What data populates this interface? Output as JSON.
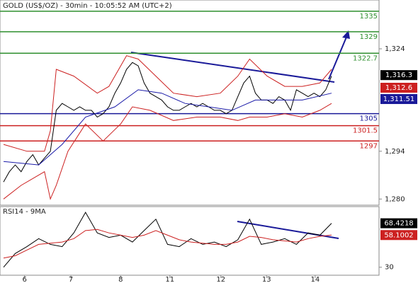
{
  "chart_data": [
    {
      "type": "line",
      "title": "GOLD (US$/OZ) - 30min - 10:05:52 AM (UTC+2)",
      "xlim": [
        -0.6,
        64.1
      ],
      "ylim": [
        1278.2,
        1338.3
      ],
      "yticks": [
        {
          "value": 1324,
          "label": "1,324"
        },
        {
          "value": 1294,
          "label": "1,294"
        },
        {
          "value": 1280,
          "label": "1,280"
        }
      ],
      "levels": [
        {
          "value": 1335,
          "color": "#2f8f2f"
        },
        {
          "value": 1329,
          "color": "#2f8f2f"
        },
        {
          "value": 1322.7,
          "color": "#2f8f2f"
        },
        {
          "value": 1305,
          "color": "#1a1a99"
        },
        {
          "value": 1301.5,
          "color": "#cc2020"
        },
        {
          "value": 1297,
          "color": "#cc2020"
        }
      ],
      "price_labels": [
        {
          "value": 1316.3,
          "label": "1,316.3",
          "color": "#000000"
        },
        {
          "value": 1312.6,
          "label": "1,312.6",
          "color": "#cc2020"
        },
        {
          "value": 1311.51,
          "label": "1,311.51",
          "color": "#1a1a99"
        }
      ],
      "series": [
        {
          "color": "#000000",
          "x": [
            0,
            1,
            2,
            3,
            4,
            5,
            6,
            7,
            8,
            9,
            10,
            11,
            12,
            13,
            14,
            15,
            16,
            17,
            18,
            19,
            20,
            21,
            22,
            23,
            24,
            25,
            26,
            27,
            28,
            29,
            30,
            31,
            32,
            33,
            34,
            35,
            36,
            37,
            38,
            39,
            40,
            41,
            42,
            43,
            44,
            45,
            46,
            47,
            48,
            49,
            50,
            51,
            52,
            53,
            54,
            55,
            56
          ],
          "values": [
            1285,
            1288,
            1290,
            1288,
            1291,
            1293,
            1290,
            1292,
            1294,
            1306,
            1308,
            1307,
            1306,
            1307,
            1306,
            1306,
            1304,
            1305,
            1307,
            1311,
            1314,
            1318,
            1320,
            1319,
            1314,
            1311,
            1310,
            1309,
            1307,
            1306,
            1306,
            1307,
            1308,
            1307,
            1308,
            1307,
            1306,
            1306,
            1305,
            1306,
            1310,
            1314,
            1316,
            1311,
            1309,
            1309,
            1308,
            1310,
            1309,
            1306,
            1312,
            1311,
            1310,
            1311,
            1310,
            1312,
            1316
          ]
        },
        {
          "color": "#cc2020",
          "x": [
            0,
            4,
            7,
            8,
            9,
            12,
            16,
            18,
            21,
            23,
            26,
            29,
            33,
            37,
            40,
            42,
            45,
            48,
            51,
            54,
            56
          ],
          "values": [
            1296,
            1294,
            1294,
            1300,
            1318,
            1316,
            1311,
            1313,
            1322,
            1321,
            1316,
            1311,
            1310,
            1311,
            1316,
            1321,
            1316,
            1313,
            1313,
            1314,
            1318
          ]
        },
        {
          "color": "#cc2020",
          "x": [
            0,
            3,
            7,
            8,
            9,
            11,
            14,
            17,
            20,
            22,
            25,
            29,
            33,
            37,
            40,
            42,
            45,
            48,
            51,
            54,
            56
          ],
          "values": [
            1280,
            1284,
            1288,
            1280,
            1284,
            1294,
            1302,
            1297,
            1302,
            1307,
            1306,
            1303,
            1304,
            1304,
            1303,
            1304,
            1304,
            1305,
            1304,
            1306,
            1308
          ]
        },
        {
          "color": "#1a1aa8",
          "x": [
            0,
            6,
            10,
            14,
            19,
            23,
            27,
            31,
            35,
            39,
            43,
            47,
            51,
            56
          ],
          "values": [
            1291,
            1290,
            1296,
            1304,
            1307,
            1312,
            1311,
            1308,
            1307,
            1306,
            1309,
            1309,
            1309,
            1311
          ]
        }
      ]
    },
    {
      "type": "line",
      "title": "RSI14 - 9MA",
      "xlim": [
        -0.6,
        64.1
      ],
      "ylim": [
        23,
        83
      ],
      "yticks": [
        30
      ],
      "xticks": [
        {
          "value": 3.6,
          "label": "6"
        },
        {
          "value": 11.5,
          "label": "7"
        },
        {
          "value": 20,
          "label": "8"
        },
        {
          "value": 28.4,
          "label": "11"
        },
        {
          "value": 37.1,
          "label": "12"
        },
        {
          "value": 44.9,
          "label": "13"
        },
        {
          "value": 53.2,
          "label": "14"
        }
      ],
      "price_labels": [
        {
          "value": 68.4218,
          "color": "#000000"
        },
        {
          "value": 58.1002,
          "color": "#cc2020"
        }
      ],
      "series": [
        {
          "color": "#000000",
          "x": [
            0,
            2,
            4,
            6,
            8,
            10,
            12,
            14,
            16,
            18,
            20,
            22,
            24,
            26,
            28,
            30,
            32,
            34,
            36,
            38,
            40,
            42,
            44,
            46,
            48,
            50,
            52,
            54,
            56
          ],
          "values": [
            30,
            42,
            48,
            55,
            50,
            48,
            60,
            78,
            60,
            56,
            58,
            52,
            62,
            72,
            50,
            48,
            55,
            50,
            52,
            48,
            54,
            72,
            50,
            52,
            55,
            50,
            60,
            58,
            68.4218
          ]
        },
        {
          "color": "#cc2020",
          "x": [
            0,
            2,
            4,
            6,
            8,
            10,
            12,
            14,
            16,
            18,
            20,
            22,
            24,
            26,
            28,
            30,
            32,
            34,
            36,
            38,
            40,
            42,
            44,
            46,
            48,
            50,
            52,
            54,
            56
          ],
          "values": [
            38,
            40,
            45,
            50,
            51,
            52,
            55,
            62,
            63,
            60,
            58,
            56,
            58,
            62,
            58,
            54,
            52,
            51,
            50,
            50,
            52,
            57,
            56,
            54,
            53,
            52,
            55,
            57,
            58.1002
          ]
        }
      ]
    }
  ]
}
